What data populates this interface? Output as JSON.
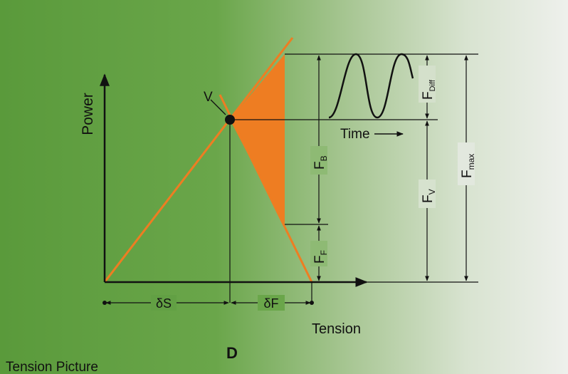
{
  "diagram": {
    "caption": "Tension Picture",
    "panel_letter": "D",
    "y_axis_label": "Power",
    "x_axis_label": "Tension",
    "point_label": "V",
    "inset_label": "Time",
    "delta_s": "δS",
    "delta_f": "δF",
    "f_b": {
      "base": "F",
      "sub": "B"
    },
    "f_f": {
      "base": "F",
      "sub": "F"
    },
    "f_diff": {
      "base": "F",
      "sub": "Diff"
    },
    "f_v": {
      "base": "F",
      "sub": "V"
    },
    "f_max": {
      "base": "F",
      "sub": "max"
    }
  },
  "colors": {
    "background_left": "#5e9e3f",
    "background_right": "#e9ece6",
    "orange": "#ee7d22",
    "ink": "#111111"
  }
}
